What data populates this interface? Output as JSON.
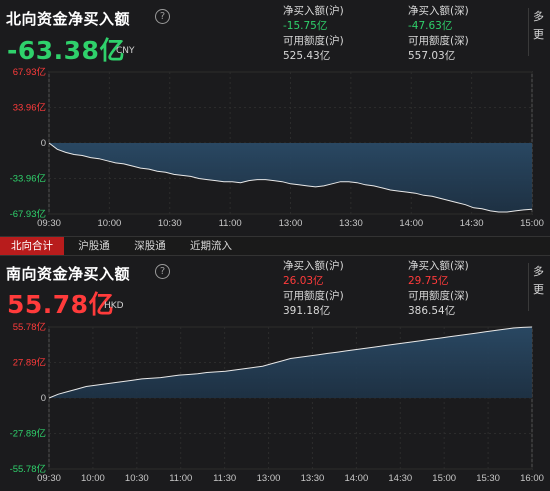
{
  "north": {
    "title": "北向资金净买入额",
    "help_icon": "?",
    "value": "-63.38亿",
    "unit": "CNY",
    "value_color": "#2fd16b",
    "stats": {
      "sh_net_label": "净买入额(沪)",
      "sh_net_value": "-15.75亿",
      "sz_net_label": "净买入额(深)",
      "sz_net_value": "-47.63亿",
      "sh_quota_label": "可用额度(沪)",
      "sh_quota_value": "525.43亿",
      "sz_quota_label": "可用额度(深)",
      "sz_quota_value": "557.03亿"
    },
    "more_label": "多\n更"
  },
  "tabs": {
    "items": [
      "北向合计",
      "沪股通",
      "深股通",
      "近期流入"
    ],
    "active_index": 0
  },
  "south": {
    "title": "南向资金净买入额",
    "help_icon": "?",
    "value": "55.78亿",
    "unit": "HKD",
    "value_color": "#ff3b3b",
    "stats": {
      "sh_net_label": "净买入额(沪)",
      "sh_net_value": "26.03亿",
      "sz_net_label": "净买入额(深)",
      "sz_net_value": "29.75亿",
      "sh_quota_label": "可用额度(沪)",
      "sh_quota_value": "391.18亿",
      "sz_quota_label": "可用额度(深)",
      "sz_quota_value": "386.54亿"
    },
    "more_label": "多\n更"
  },
  "colors": {
    "positive": "#ff3b3b",
    "negative": "#2fd16b",
    "line": "#e8e8e8",
    "fill": "#2a4a66",
    "axis": "#555555",
    "tab_active": "#b81c1c"
  },
  "chart_data": [
    {
      "type": "area",
      "x_ticks": [
        "09:30",
        "10:00",
        "10:30",
        "11:00",
        "13:00",
        "13:30",
        "14:00",
        "14:30",
        "15:00"
      ],
      "y_ticks": [
        "67.93亿",
        "33.96亿",
        "0",
        "-33.96亿",
        "-67.93亿"
      ],
      "ylim": [
        -67.93,
        67.93
      ],
      "series": [
        {
          "values": [
            0,
            -6,
            -9,
            -11,
            -12,
            -14,
            -15,
            -17,
            -19,
            -20,
            -22,
            -24,
            -25,
            -27,
            -28,
            -30,
            -31,
            -32,
            -34,
            -35,
            -36,
            -37,
            -37,
            -38,
            -36,
            -35,
            -35,
            -36,
            -37,
            -39,
            -40,
            -41,
            -42,
            -41,
            -39,
            -37,
            -37,
            -38,
            -40,
            -41,
            -43,
            -45,
            -46,
            -47,
            -48,
            -50,
            -51,
            -53,
            -55,
            -57,
            -59,
            -62,
            -63,
            -65,
            -66,
            -66,
            -65,
            -64,
            -63.38
          ]
        }
      ]
    },
    {
      "type": "area",
      "x_ticks": [
        "09:30",
        "10:00",
        "10:30",
        "11:00",
        "11:30",
        "13:00",
        "13:30",
        "14:00",
        "14:30",
        "15:00",
        "15:30",
        "16:00"
      ],
      "y_ticks": [
        "55.78亿",
        "27.89亿",
        "0",
        "-27.89亿",
        "-55.78亿"
      ],
      "ylim": [
        -55.78,
        55.78
      ],
      "series": [
        {
          "values": [
            0,
            3,
            5,
            7,
            9,
            10,
            11,
            12,
            13,
            14,
            15,
            15.5,
            16,
            17,
            18,
            18.5,
            19,
            20,
            20.5,
            21,
            22,
            23,
            24,
            25,
            27,
            29,
            31,
            32,
            33,
            34,
            35,
            36,
            37,
            38,
            39,
            40,
            41,
            42,
            43,
            44,
            45,
            46,
            47,
            48,
            49,
            50,
            51,
            52,
            53,
            54,
            55,
            55.5,
            55.78
          ]
        }
      ]
    }
  ]
}
